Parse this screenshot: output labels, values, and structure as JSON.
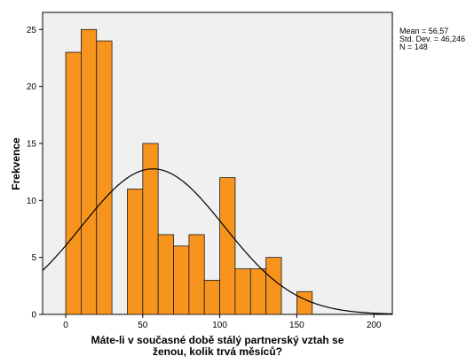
{
  "chart_data": {
    "type": "bar",
    "subtype": "histogram",
    "xlabel": [
      "Máte-li v současné době stálý partnerský vztah se",
      "ženou, kolik trvá měsíců?"
    ],
    "ylabel": "Frekvence",
    "xlim": [
      -15,
      212
    ],
    "ylim": [
      0,
      26.5
    ],
    "x_ticks": [
      0,
      50,
      100,
      150,
      200
    ],
    "y_ticks": [
      0,
      5,
      10,
      15,
      20,
      25
    ],
    "bin_width": 10,
    "bins": [
      {
        "start": 0,
        "end": 10,
        "count": 23
      },
      {
        "start": 10,
        "end": 20,
        "count": 25
      },
      {
        "start": 20,
        "end": 30,
        "count": 24
      },
      {
        "start": 30,
        "end": 40,
        "count": 0
      },
      {
        "start": 40,
        "end": 50,
        "count": 11
      },
      {
        "start": 50,
        "end": 60,
        "count": 15
      },
      {
        "start": 60,
        "end": 70,
        "count": 7
      },
      {
        "start": 70,
        "end": 80,
        "count": 6
      },
      {
        "start": 80,
        "end": 90,
        "count": 7
      },
      {
        "start": 90,
        "end": 100,
        "count": 3
      },
      {
        "start": 100,
        "end": 110,
        "count": 12
      },
      {
        "start": 110,
        "end": 120,
        "count": 4
      },
      {
        "start": 120,
        "end": 130,
        "count": 4
      },
      {
        "start": 130,
        "end": 140,
        "count": 5
      },
      {
        "start": 140,
        "end": 150,
        "count": 0
      },
      {
        "start": 150,
        "end": 160,
        "count": 2
      }
    ],
    "normal_curve": {
      "mean": 56.57,
      "sd": 46.246,
      "n": 148
    },
    "stats_text": [
      "Mean = 56,57",
      "Std. Dev. = 46,246",
      "N = 148"
    ],
    "colors": {
      "bar_fill": "#f7941d",
      "bar_stroke": "#1a1a1a",
      "plot_bg": "#f0f0f0",
      "curve": "#000000"
    }
  }
}
